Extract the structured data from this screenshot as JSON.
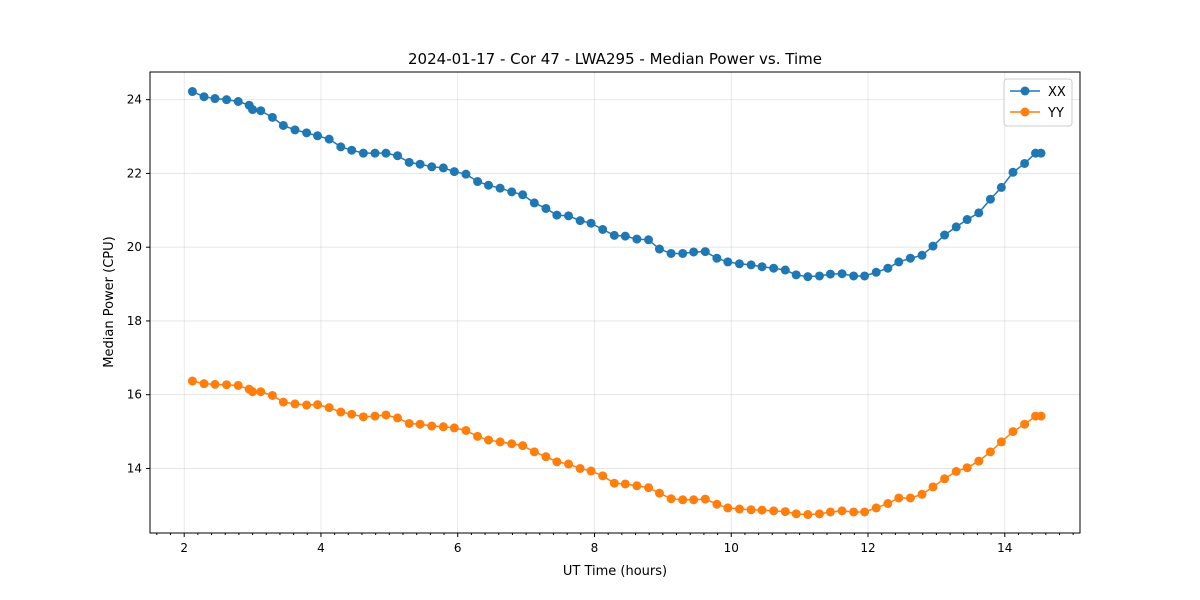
{
  "chart_data": {
    "type": "line",
    "title": "2024-01-17 - Cor 47 - LWA295 - Median Power vs. Time",
    "xlabel": "UT Time (hours)",
    "ylabel": "Median Power (CPU)",
    "xlim": [
      1.5,
      15.1
    ],
    "ylim": [
      12.25,
      24.75
    ],
    "xticks": [
      2,
      4,
      6,
      8,
      10,
      12,
      14
    ],
    "yticks": [
      14,
      16,
      18,
      20,
      22,
      24
    ],
    "grid": true,
    "legend_position": "top-right",
    "x": [
      2.12,
      2.29,
      2.45,
      2.62,
      2.79,
      2.95,
      3.0,
      3.12,
      3.29,
      3.45,
      3.62,
      3.79,
      3.95,
      4.12,
      4.29,
      4.45,
      4.62,
      4.79,
      4.95,
      5.12,
      5.29,
      5.45,
      5.62,
      5.79,
      5.95,
      6.12,
      6.29,
      6.45,
      6.62,
      6.79,
      6.95,
      7.12,
      7.29,
      7.45,
      7.62,
      7.79,
      7.95,
      8.12,
      8.29,
      8.45,
      8.62,
      8.79,
      8.95,
      9.12,
      9.29,
      9.45,
      9.62,
      9.79,
      9.95,
      10.12,
      10.29,
      10.45,
      10.62,
      10.79,
      10.95,
      11.12,
      11.29,
      11.45,
      11.62,
      11.79,
      11.95,
      12.12,
      12.29,
      12.45,
      12.62,
      12.79,
      12.95,
      13.12,
      13.29,
      13.45,
      13.62,
      13.79,
      13.95,
      14.12,
      14.29,
      14.45,
      14.53
    ],
    "series": [
      {
        "name": "XX",
        "color": "#1f77b4",
        "values": [
          24.22,
          24.08,
          24.03,
          24.0,
          23.95,
          23.85,
          23.73,
          23.7,
          23.52,
          23.3,
          23.18,
          23.1,
          23.02,
          22.93,
          22.72,
          22.63,
          22.55,
          22.55,
          22.55,
          22.48,
          22.3,
          22.25,
          22.18,
          22.15,
          22.05,
          21.98,
          21.78,
          21.68,
          21.6,
          21.5,
          21.42,
          21.2,
          21.05,
          20.87,
          20.85,
          20.72,
          20.65,
          20.48,
          20.32,
          20.3,
          20.22,
          20.2,
          19.95,
          19.83,
          19.83,
          19.87,
          19.88,
          19.7,
          19.6,
          19.55,
          19.52,
          19.47,
          19.43,
          19.38,
          19.25,
          19.2,
          19.22,
          19.27,
          19.28,
          19.22,
          19.22,
          19.32,
          19.43,
          19.6,
          19.7,
          19.78,
          20.03,
          20.33,
          20.55,
          20.75,
          20.93,
          21.3,
          21.62,
          22.03,
          22.27,
          22.55,
          22.55
        ]
      },
      {
        "name": "YY",
        "color": "#ff7f0e",
        "values": [
          16.37,
          16.3,
          16.28,
          16.27,
          16.25,
          16.15,
          16.08,
          16.08,
          15.98,
          15.8,
          15.75,
          15.72,
          15.73,
          15.65,
          15.53,
          15.47,
          15.4,
          15.42,
          15.45,
          15.37,
          15.22,
          15.2,
          15.15,
          15.13,
          15.1,
          15.03,
          14.87,
          14.77,
          14.72,
          14.67,
          14.62,
          14.45,
          14.32,
          14.18,
          14.12,
          14.0,
          13.93,
          13.8,
          13.6,
          13.58,
          13.53,
          13.48,
          13.33,
          13.18,
          13.15,
          13.15,
          13.17,
          13.03,
          12.93,
          12.9,
          12.88,
          12.87,
          12.85,
          12.83,
          12.77,
          12.75,
          12.77,
          12.82,
          12.85,
          12.82,
          12.82,
          12.93,
          13.05,
          13.2,
          13.2,
          13.3,
          13.5,
          13.72,
          13.92,
          14.02,
          14.2,
          14.45,
          14.72,
          15.0,
          15.2,
          15.42,
          15.42
        ]
      }
    ]
  }
}
